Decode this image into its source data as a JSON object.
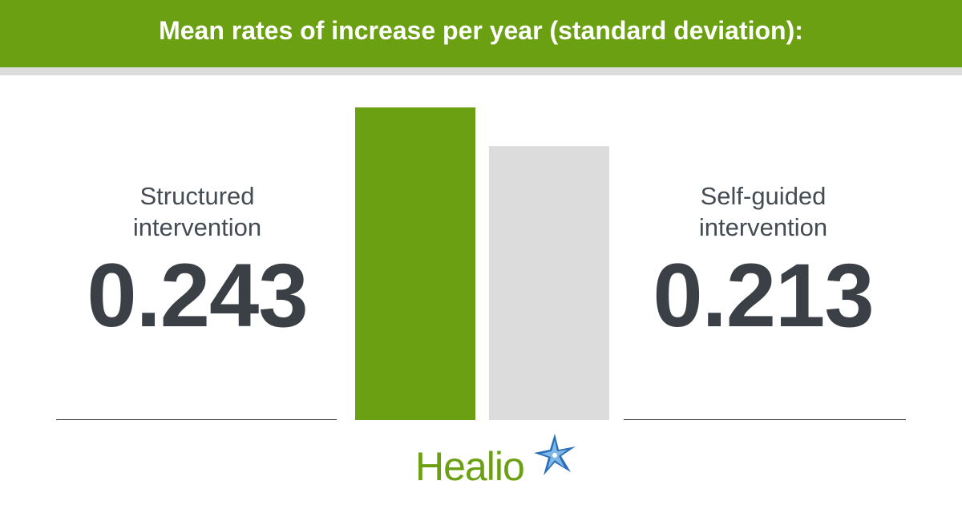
{
  "header": {
    "title": "Mean rates of increase per year (standard deviation):"
  },
  "stats": [
    {
      "label": "Structured\nintervention",
      "value": "0.243"
    },
    {
      "label": "Self-guided\nintervention",
      "value": "0.213"
    }
  ],
  "chart_data": {
    "type": "bar",
    "categories": [
      "Structured intervention",
      "Self-guided intervention"
    ],
    "values": [
      0.243,
      0.213
    ],
    "colors": [
      "#6aa012",
      "#dcdcdc"
    ],
    "title": "Mean rates of increase per year (standard deviation):",
    "xlabel": "",
    "ylabel": "",
    "grid": false
  },
  "brand": {
    "name": "Healio",
    "color": "#6aa012",
    "icon": "star-burst-icon"
  }
}
